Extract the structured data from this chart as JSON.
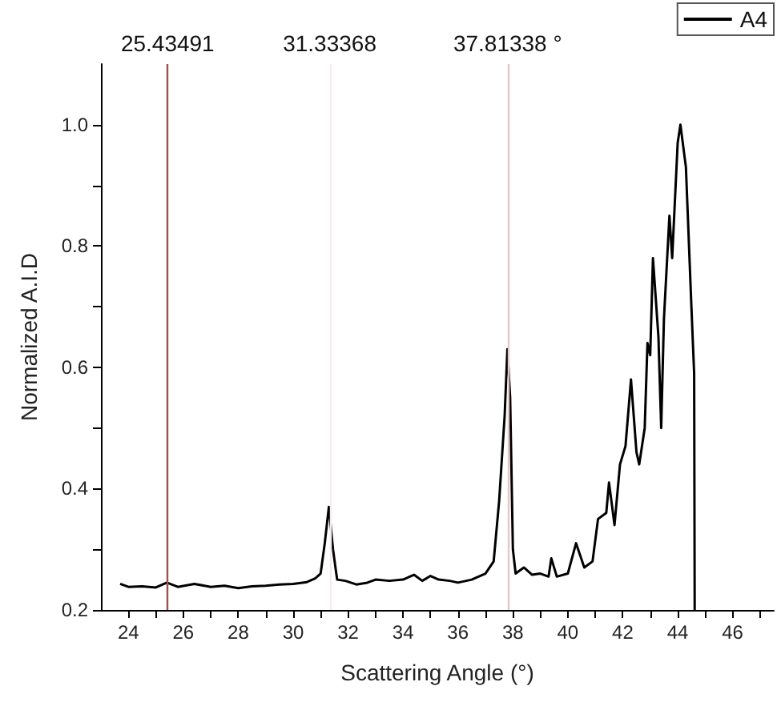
{
  "chart_data": {
    "type": "line",
    "xlabel": "Scattering Angle (°)",
    "ylabel": "Normalized A.I.D",
    "x": [
      23.7,
      24,
      24.5,
      25,
      25.4,
      25.8,
      26.4,
      27,
      27.5,
      28,
      28.5,
      29,
      29.5,
      30,
      30.5,
      30.8,
      31,
      31.15,
      31.3,
      31.45,
      31.6,
      31.9,
      32.3,
      32.7,
      33,
      33.5,
      34,
      34.4,
      34.7,
      35,
      35.3,
      35.7,
      36,
      36.5,
      37,
      37.3,
      37.5,
      37.7,
      37.8,
      37.9,
      38,
      38.1,
      38.4,
      38.7,
      39,
      39.3,
      39.4,
      39.6,
      40,
      40.3,
      40.6,
      40.9,
      41.1,
      41.4,
      41.5,
      41.7,
      41.9,
      42.1,
      42.3,
      42.5,
      42.6,
      42.8,
      42.9,
      43,
      43.1,
      43.3,
      43.4,
      43.5,
      43.7,
      43.8,
      44,
      44.1,
      44.3,
      44.5,
      44.6,
      44.62
    ],
    "series": [
      {
        "name": "A4",
        "color": "#000000",
        "values": [
          0.243,
          0.238,
          0.239,
          0.237,
          0.245,
          0.238,
          0.243,
          0.238,
          0.24,
          0.236,
          0.239,
          0.24,
          0.242,
          0.243,
          0.246,
          0.252,
          0.26,
          0.31,
          0.37,
          0.3,
          0.25,
          0.248,
          0.242,
          0.245,
          0.25,
          0.248,
          0.25,
          0.258,
          0.248,
          0.256,
          0.25,
          0.248,
          0.245,
          0.25,
          0.26,
          0.28,
          0.38,
          0.52,
          0.63,
          0.55,
          0.3,
          0.26,
          0.27,
          0.258,
          0.26,
          0.255,
          0.285,
          0.255,
          0.26,
          0.31,
          0.27,
          0.28,
          0.35,
          0.36,
          0.41,
          0.34,
          0.44,
          0.47,
          0.58,
          0.46,
          0.44,
          0.5,
          0.64,
          0.62,
          0.78,
          0.65,
          0.5,
          0.68,
          0.85,
          0.78,
          0.97,
          1.0,
          0.93,
          0.7,
          0.59,
          0.2
        ]
      }
    ],
    "xlim": [
      23,
      47.5
    ],
    "xticks": [
      24,
      {
        "value": 25,
        "label": null
      },
      26,
      {
        "value": 27,
        "label": null
      },
      28,
      {
        "value": 29,
        "label": null
      },
      30,
      {
        "value": 31,
        "label": null
      },
      32,
      {
        "value": 33,
        "label": null
      },
      34,
      {
        "value": 35,
        "label": null
      },
      36,
      {
        "value": 37,
        "label": null
      },
      38,
      {
        "value": 39,
        "label": null
      },
      40,
      {
        "value": 41,
        "label": null
      },
      42,
      {
        "value": 43,
        "label": null
      },
      44,
      {
        "value": 45,
        "label": null
      },
      46,
      {
        "value": 47,
        "label": null
      }
    ],
    "ylim": [
      0.2,
      1.1
    ],
    "yticks": [
      {
        "value": 0.2,
        "label": "0.2"
      },
      {
        "value": 0.3,
        "label": null
      },
      {
        "value": 0.4,
        "label": "0.4"
      },
      {
        "value": 0.5,
        "label": null
      },
      {
        "value": 0.6,
        "label": "0.6"
      },
      {
        "value": 0.7,
        "label": null
      },
      {
        "value": 0.8,
        "label": "0.8"
      },
      {
        "value": 0.9,
        "label": null
      },
      {
        "value": 1,
        "label": "1.0"
      }
    ],
    "ref_lines": [
      {
        "axis": "x",
        "value": 25.43491,
        "label": "25.43491",
        "color": "#a0504a"
      },
      {
        "axis": "x",
        "value": 31.33368,
        "label": "31.33368",
        "color": "#f4ecec"
      },
      {
        "axis": "x",
        "value": 37.81338,
        "label": "37.81338 °",
        "color": "#e6c6c8"
      }
    ],
    "grid": false,
    "legend": "top right",
    "marker": "none",
    "line_style": "solid"
  }
}
